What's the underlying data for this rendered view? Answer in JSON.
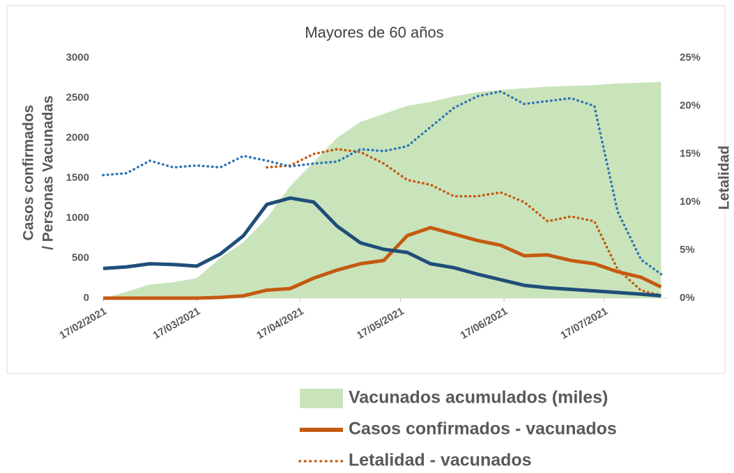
{
  "chart_data": {
    "type": "line",
    "title": "Mayores de 60 años",
    "ylabel": [
      "Casos confirmados",
      "/ Personas Vacunadas"
    ],
    "y2label": "Letalidad",
    "x": [
      "17/02/2021",
      "24/02/2021",
      "03/03/2021",
      "10/03/2021",
      "17/03/2021",
      "24/03/2021",
      "31/03/2021",
      "07/04/2021",
      "14/04/2021",
      "21/04/2021",
      "28/04/2021",
      "05/05/2021",
      "12/05/2021",
      "19/05/2021",
      "26/05/2021",
      "02/06/2021",
      "09/06/2021",
      "16/06/2021",
      "23/06/2021",
      "30/06/2021",
      "07/07/2021",
      "14/07/2021",
      "21/07/2021",
      "28/07/2021",
      "03/08/2021"
    ],
    "xlim": [
      "17/02/2021",
      "05/08/2021"
    ],
    "xticks": [
      "17/02/2021",
      "17/03/2021",
      "17/04/2021",
      "17/05/2021",
      "17/06/2021",
      "17/07/2021"
    ],
    "ylim": [
      0,
      3000
    ],
    "yticks": [
      0,
      500,
      1000,
      1500,
      2000,
      2500,
      3000
    ],
    "y2lim": [
      0,
      25
    ],
    "y2ticks": [
      {
        "value": 0,
        "label": "0%"
      },
      {
        "value": 5,
        "label": "5%"
      },
      {
        "value": 10,
        "label": "10%"
      },
      {
        "value": 15,
        "label": "15%"
      },
      {
        "value": 20,
        "label": "20%"
      },
      {
        "value": 25,
        "label": "25%"
      }
    ],
    "legend": "bottom",
    "series": [
      {
        "name": "Vacunados acumulados (miles)",
        "style": "area",
        "color": "#c9e4bb",
        "values": [
          0,
          80,
          170,
          200,
          250,
          500,
          700,
          1000,
          1400,
          1700,
          2000,
          2200,
          2300,
          2400,
          2450,
          2520,
          2570,
          2600,
          2620,
          2640,
          2650,
          2660,
          2680,
          2690,
          2700
        ]
      },
      {
        "name": "Casos confirmados - vacunados",
        "style": "line",
        "color": "#c55a11",
        "values": [
          0,
          0,
          0,
          0,
          0,
          10,
          30,
          100,
          120,
          250,
          350,
          430,
          470,
          780,
          880,
          800,
          720,
          660,
          530,
          540,
          470,
          430,
          330,
          260,
          140
        ]
      },
      {
        "name": "Letalidad - vacunados",
        "style": "dotted",
        "color": "#c55a11",
        "axis": "y2",
        "values": [
          null,
          null,
          null,
          null,
          null,
          null,
          null,
          13.6,
          13.8,
          15,
          15.5,
          15.2,
          14,
          12.3,
          11.8,
          10.6,
          10.6,
          11,
          10,
          8,
          8.5,
          8,
          3,
          0.8,
          0.3
        ]
      },
      {
        "style": "line",
        "color": "#1f4e79",
        "values": [
          370,
          390,
          430,
          420,
          400,
          550,
          780,
          1170,
          1250,
          1200,
          900,
          690,
          610,
          570,
          430,
          380,
          300,
          230,
          160,
          130,
          110,
          90,
          70,
          50,
          30
        ]
      },
      {
        "style": "dotted",
        "color": "#2e75b6",
        "axis": "y2",
        "values": [
          12.8,
          13,
          14.3,
          13.6,
          13.8,
          13.6,
          14.8,
          14.3,
          13.7,
          14,
          14.2,
          15.5,
          15.3,
          15.8,
          17.8,
          19.8,
          21,
          21.5,
          20.2,
          20.5,
          20.8,
          20,
          9,
          4,
          2.5
        ]
      }
    ]
  }
}
